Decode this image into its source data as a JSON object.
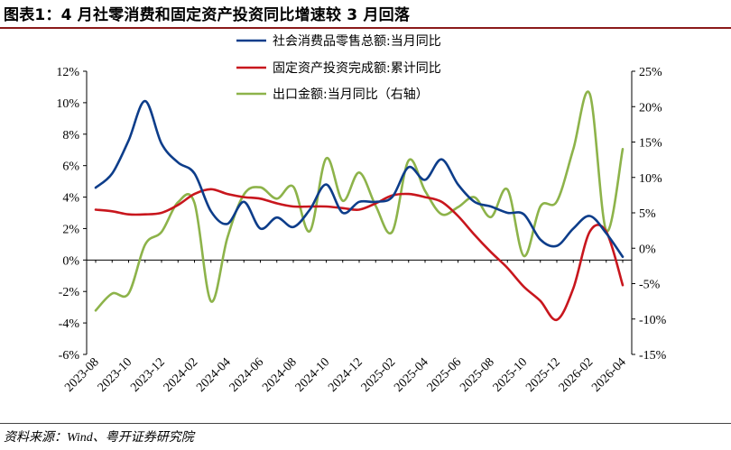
{
  "header": {
    "title": "图表1：4 月社零消费和固定资产投资同比增速较 3 月回落"
  },
  "footer": {
    "source": "资料来源：Wind、粤开证券研究院"
  },
  "chart_data": {
    "type": "line",
    "x": [
      "2023-08",
      "2023-09",
      "2023-10",
      "2023-11",
      "2023-12",
      "2024-01",
      "2024-02",
      "2024-03",
      "2024-04",
      "2024-05",
      "2024-06",
      "2024-07",
      "2024-08",
      "2024-09",
      "2024-10",
      "2024-11",
      "2024-12",
      "2025-01",
      "2025-02",
      "2025-03",
      "2025-04",
      "2025-05",
      "2025-06",
      "2025-07",
      "2025-08",
      "2025-09",
      "2025-10",
      "2025-11",
      "2025-12",
      "2026-01",
      "2026-02",
      "2026-03",
      "2026-04"
    ],
    "x_tick_labels": [
      "2023-08",
      "2023-10",
      "2023-12",
      "2024-02",
      "2024-04",
      "2024-06",
      "2024-08",
      "2024-10",
      "2024-12",
      "2025-02",
      "2025-04",
      "2025-06",
      "2025-08",
      "2025-10",
      "2025-12",
      "2026-02",
      "2026-04"
    ],
    "ylim_left": [
      -6,
      12
    ],
    "yticks_left": [
      "12%",
      "10%",
      "8%",
      "6%",
      "4%",
      "2%",
      "0%",
      "-2%",
      "-4%",
      "-6%"
    ],
    "ylim_right": [
      -15,
      25
    ],
    "yticks_right": [
      "25%",
      "20%",
      "15%",
      "10%",
      "5%",
      "0%",
      "-5%",
      "-10%",
      "-15%"
    ],
    "legend_position": "top-center",
    "grid": false,
    "series": [
      {
        "name": "社会消费品零售总额:当月同比",
        "axis": "left",
        "color": "#0d3d8a",
        "values": [
          4.6,
          5.5,
          7.6,
          10.1,
          7.4,
          6.2,
          5.5,
          3.1,
          2.3,
          3.7,
          2.0,
          2.7,
          2.1,
          3.2,
          4.8,
          3.0,
          3.7,
          3.7,
          4.0,
          5.9,
          5.1,
          6.4,
          4.8,
          3.7,
          3.4,
          3.0,
          2.9,
          1.3,
          0.9,
          2.0,
          2.8,
          1.7,
          0.2
        ]
      },
      {
        "name": "固定资产投资完成额:累计同比",
        "axis": "left",
        "color": "#c8161d",
        "values": [
          3.2,
          3.1,
          2.9,
          2.9,
          3.0,
          3.5,
          4.2,
          4.5,
          4.2,
          4.0,
          3.9,
          3.6,
          3.4,
          3.4,
          3.4,
          3.3,
          3.2,
          3.6,
          4.1,
          4.2,
          4.0,
          3.7,
          2.8,
          1.6,
          0.5,
          -0.5,
          -1.7,
          -2.6,
          -3.8,
          -1.8,
          1.8,
          1.8,
          -1.6
        ]
      },
      {
        "name": "出口金额:当月同比（右轴）",
        "axis": "right",
        "color": "#8db34a",
        "values": [
          -8.8,
          -6.4,
          -6.4,
          0.5,
          2.3,
          6.5,
          6.4,
          -7.5,
          1.5,
          7.6,
          8.6,
          7.0,
          8.7,
          2.4,
          12.7,
          6.7,
          10.7,
          6.0,
          2.3,
          12.4,
          8.1,
          4.8,
          5.8,
          7.2,
          4.4,
          8.3,
          -1.1,
          5.9,
          6.6,
          14.0,
          21.8,
          2.5,
          14.0
        ]
      }
    ]
  }
}
